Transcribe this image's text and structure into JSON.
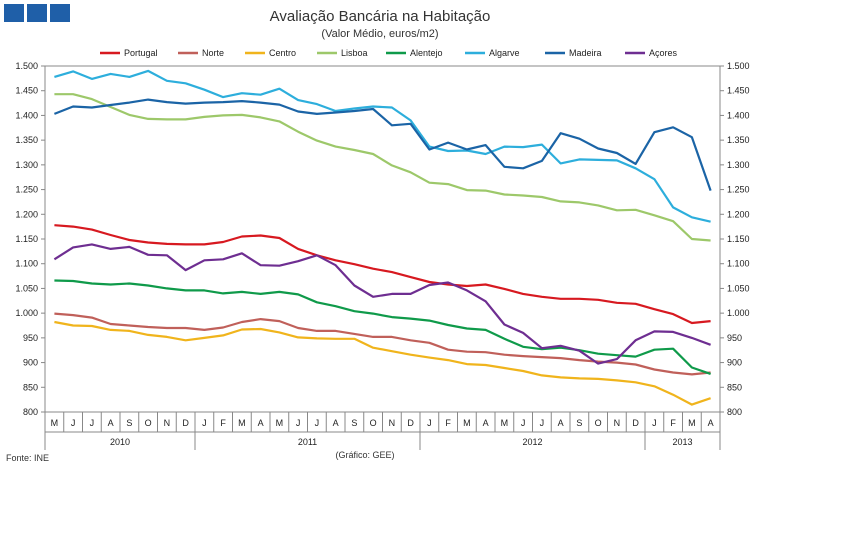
{
  "header": {
    "title": "Avaliação Bancária na Habitação",
    "subtitle": "(Valor Médio, euros/m2)"
  },
  "footer": {
    "source": "Fonte: INE",
    "credit": "(Gráfico:  GEE)"
  },
  "chart_data": {
    "type": "line",
    "title": "Avaliação Bancária na Habitação",
    "subtitle": "(Valor Médio, euros/m2)",
    "ylim": [
      800,
      1500
    ],
    "yticks": [
      800,
      850,
      900,
      950,
      1000,
      1050,
      1100,
      1150,
      1200,
      1250,
      1300,
      1350,
      1400,
      1450,
      1500
    ],
    "ytick_labels": [
      "800",
      "850",
      "900",
      "950",
      "1.000",
      "1.050",
      "1.100",
      "1.150",
      "1.200",
      "1.250",
      "1.300",
      "1.350",
      "1.400",
      "1.450",
      "1.500"
    ],
    "categories": [
      "M",
      "J",
      "J",
      "A",
      "S",
      "O",
      "N",
      "D",
      "J",
      "F",
      "M",
      "A",
      "M",
      "J",
      "J",
      "A",
      "S",
      "O",
      "N",
      "D",
      "J",
      "F",
      "M",
      "A",
      "M",
      "J",
      "J",
      "A",
      "S",
      "O",
      "N",
      "D",
      "J",
      "F",
      "M",
      "A"
    ],
    "years": [
      {
        "label": "2010",
        "start": 0,
        "count": 8
      },
      {
        "label": "2011",
        "start": 8,
        "count": 12
      },
      {
        "label": "2012",
        "start": 20,
        "count": 12
      },
      {
        "label": "2013",
        "start": 32,
        "count": 4
      }
    ],
    "legend_position": "top",
    "series": [
      {
        "name": "Portugal",
        "color": "#d71920",
        "values": [
          1178,
          1175,
          1169,
          1158,
          1148,
          1143,
          1140,
          1139,
          1139,
          1144,
          1155,
          1157,
          1152,
          1130,
          1117,
          1107,
          1099,
          1090,
          1083,
          1073,
          1063,
          1058,
          1055,
          1058,
          1049,
          1039,
          1033,
          1029,
          1029,
          1027,
          1021,
          1019,
          1008,
          998,
          980,
          984
        ]
      },
      {
        "name": "Norte",
        "color": "#c0605a",
        "values": [
          999,
          996,
          991,
          978,
          975,
          972,
          970,
          970,
          966,
          971,
          982,
          988,
          984,
          970,
          964,
          964,
          958,
          952,
          952,
          945,
          940,
          926,
          922,
          921,
          916,
          913,
          911,
          909,
          905,
          902,
          900,
          896,
          886,
          880,
          876,
          880
        ]
      },
      {
        "name": "Centro",
        "color": "#f0b41c",
        "values": [
          982,
          975,
          974,
          966,
          964,
          956,
          952,
          945,
          950,
          955,
          967,
          968,
          961,
          951,
          949,
          948,
          948,
          930,
          923,
          916,
          910,
          905,
          897,
          895,
          889,
          883,
          874,
          870,
          868,
          867,
          864,
          860,
          852,
          835,
          815,
          828
        ]
      },
      {
        "name": "Lisboa",
        "color": "#9dc86a",
        "values": [
          1443,
          1443,
          1433,
          1417,
          1401,
          1393,
          1392,
          1392,
          1397,
          1400,
          1401,
          1396,
          1388,
          1367,
          1349,
          1337,
          1330,
          1322,
          1299,
          1285,
          1264,
          1261,
          1249,
          1248,
          1240,
          1238,
          1235,
          1226,
          1224,
          1218,
          1208,
          1209,
          1198,
          1186,
          1150,
          1147
        ]
      },
      {
        "name": "Alentejo",
        "color": "#0f9a4a",
        "values": [
          1066,
          1065,
          1060,
          1058,
          1060,
          1056,
          1050,
          1046,
          1046,
          1040,
          1043,
          1039,
          1043,
          1038,
          1022,
          1014,
          1004,
          999,
          992,
          989,
          985,
          976,
          969,
          966,
          948,
          932,
          927,
          930,
          925,
          918,
          915,
          912,
          926,
          928,
          890,
          877
        ]
      },
      {
        "name": "Algarve",
        "color": "#2daedc",
        "values": [
          1478,
          1489,
          1474,
          1484,
          1478,
          1490,
          1470,
          1465,
          1452,
          1437,
          1445,
          1442,
          1454,
          1431,
          1423,
          1409,
          1414,
          1418,
          1416,
          1390,
          1337,
          1328,
          1329,
          1322,
          1337,
          1336,
          1341,
          1303,
          1311,
          1310,
          1309,
          1293,
          1271,
          1214,
          1194,
          1185
        ]
      },
      {
        "name": "Madeira",
        "color": "#1b64a6",
        "values": [
          1403,
          1418,
          1416,
          1421,
          1426,
          1432,
          1427,
          1424,
          1426,
          1427,
          1429,
          1426,
          1422,
          1408,
          1403,
          1406,
          1409,
          1413,
          1380,
          1383,
          1331,
          1345,
          1331,
          1340,
          1296,
          1293,
          1308,
          1364,
          1353,
          1333,
          1324,
          1302,
          1366,
          1376,
          1356,
          1248
        ]
      },
      {
        "name": "Açores",
        "color": "#6e2e91",
        "values": [
          1109,
          1133,
          1139,
          1130,
          1134,
          1118,
          1117,
          1087,
          1107,
          1109,
          1121,
          1097,
          1096,
          1105,
          1117,
          1097,
          1056,
          1033,
          1039,
          1039,
          1057,
          1062,
          1046,
          1024,
          977,
          960,
          929,
          934,
          924,
          898,
          907,
          945,
          963,
          962,
          950,
          936
        ]
      }
    ]
  }
}
